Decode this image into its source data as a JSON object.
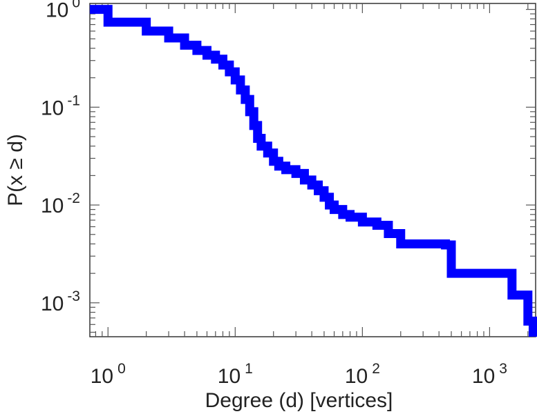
{
  "chart_data": {
    "type": "line",
    "title": "",
    "xlabel": "Degree (d) [vertices]",
    "ylabel": "P(x ≥ d)",
    "xscale": "log",
    "yscale": "log",
    "xlim": [
      0.72,
      2300
    ],
    "ylim": [
      0.00045,
      1.15
    ],
    "grid": false,
    "line_color": "#0000ff",
    "x_ticks": [
      {
        "value": 1,
        "base": "10",
        "exp": "0"
      },
      {
        "value": 10,
        "base": "10",
        "exp": "1"
      },
      {
        "value": 100,
        "base": "10",
        "exp": "2"
      },
      {
        "value": 1000,
        "base": "10",
        "exp": "3"
      }
    ],
    "y_ticks": [
      {
        "value": 1,
        "base": "10",
        "exp": "0"
      },
      {
        "value": 0.1,
        "base": "10",
        "exp": "-1"
      },
      {
        "value": 0.01,
        "base": "10",
        "exp": "-2"
      },
      {
        "value": 0.001,
        "base": "10",
        "exp": "-3"
      }
    ],
    "series": [
      {
        "x": [
          0.72,
          1,
          2,
          3,
          4,
          5,
          6,
          7,
          8,
          9,
          10,
          11,
          12,
          13,
          14,
          15,
          16,
          18,
          20,
          22,
          25,
          30,
          35,
          40,
          45,
          50,
          55,
          60,
          70,
          80,
          100,
          130,
          160,
          200,
          300,
          450,
          500,
          1400,
          1500,
          2000,
          2200
        ],
        "y": [
          1.0,
          0.74,
          0.6,
          0.51,
          0.43,
          0.38,
          0.34,
          0.31,
          0.27,
          0.23,
          0.19,
          0.15,
          0.12,
          0.09,
          0.065,
          0.048,
          0.04,
          0.034,
          0.028,
          0.025,
          0.023,
          0.021,
          0.018,
          0.016,
          0.014,
          0.012,
          0.01,
          0.009,
          0.008,
          0.0075,
          0.0067,
          0.0062,
          0.0051,
          0.004,
          0.004,
          0.0039,
          0.002,
          0.002,
          0.0012,
          0.00065,
          0.00045
        ]
      }
    ]
  }
}
